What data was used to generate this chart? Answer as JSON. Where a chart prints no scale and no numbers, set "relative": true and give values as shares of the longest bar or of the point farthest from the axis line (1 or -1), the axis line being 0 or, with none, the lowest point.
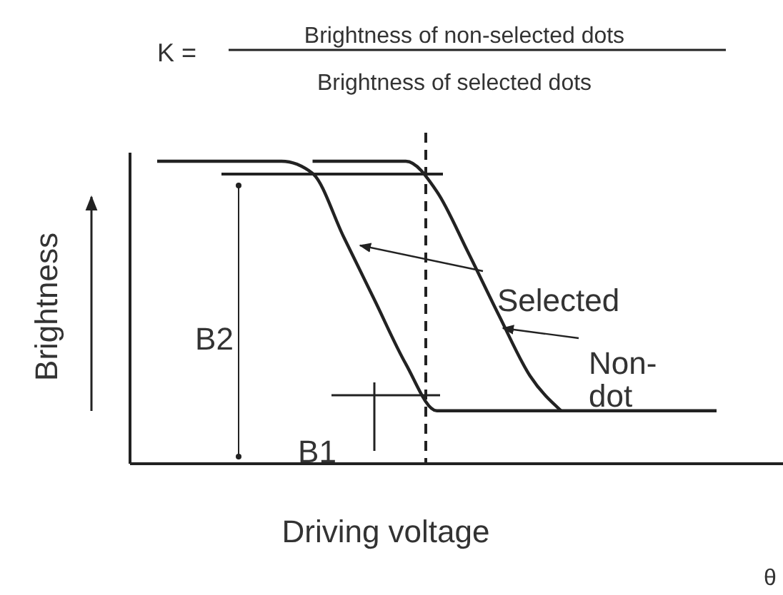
{
  "chart_data": {
    "type": "line",
    "relative": true,
    "xlabel": "Driving voltage",
    "ylabel": "Brightness",
    "annotations": [
      "K =",
      "Brightness of non-selected dots",
      "Brightness of selected dots",
      "B2",
      "B1",
      "θ",
      "Selected",
      "Non-dot"
    ],
    "categories": [
      null,
      null,
      null,
      null,
      null,
      null,
      null,
      null,
      null,
      null,
      null,
      null,
      null,
      null,
      null,
      null,
      null,
      null,
      null
    ],
    "series": [
      {
        "color": "#222222",
        "values": [
          1,
          1,
          1,
          1,
          1,
          0.96,
          0.75,
          0.54,
          0.33,
          0.175,
          0.175,
          0.175,
          0.175,
          0.175,
          0.175,
          0.175,
          0.175,
          0.175,
          0.175
        ]
      },
      {
        "color": "#222222",
        "values": [
          null,
          null,
          null,
          null,
          null,
          1,
          1,
          1,
          1,
          0.9,
          0.7,
          0.49,
          0.29,
          0.175,
          null,
          null,
          null,
          null,
          null
        ]
      }
    ],
    "legend": false,
    "marker": "none",
    "line_style": "solid",
    "grid": false
  }
}
